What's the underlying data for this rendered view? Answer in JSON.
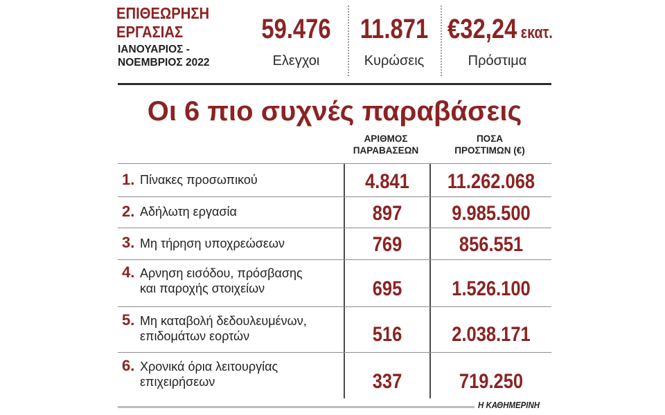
{
  "header": {
    "title_line1": "ΕΠΙΘΕΩΡΗΣΗ",
    "title_line2": "ΕΡΓΑΣΙΑΣ",
    "period_line1": "ΙΑΝΟΥΑΡΙΟΣ -",
    "period_line2": "ΝΟΕΜΒΡΙΟΣ 2022"
  },
  "stats": [
    {
      "value": "59.476",
      "unit": "",
      "label": "Ελεγχοι"
    },
    {
      "value": "11.871",
      "unit": "",
      "label": "Κυρώσεις"
    },
    {
      "value": "€32,24",
      "unit": " εκατ.",
      "label": "Πρόστιμα"
    }
  ],
  "heading": "Οι 6 πιο συχνές παραβάσεις",
  "columns": {
    "count_line1": "ΑΡΙΘΜΟΣ",
    "count_line2": "ΠΑΡΑΒΑΣΕΩΝ",
    "fines_line1": "ΠΟΣΑ",
    "fines_line2": "ΠΡΟΣΤΙΜΩΝ (€)"
  },
  "rows": [
    {
      "num": "1.",
      "line1": "Πίνακες προσωπικού",
      "line2": "",
      "count": "4.841",
      "fines": "11.262.068"
    },
    {
      "num": "2.",
      "line1": "Αδήλωτη εργασία",
      "line2": "",
      "count": "897",
      "fines": "9.985.500"
    },
    {
      "num": "3.",
      "line1": "Μη τήρηση υποχρεώσεων",
      "line2": "",
      "count": "769",
      "fines": "856.551"
    },
    {
      "num": "4.",
      "line1": "Αρνηση εισόδου, πρόσβασης",
      "line2": "και παροχής στοιχείων",
      "count": "695",
      "fines": "1.526.100"
    },
    {
      "num": "5.",
      "line1": "Μη καταβολή δεδουλευμένων,",
      "line2": "επιδομάτων εορτών",
      "count": "516",
      "fines": "2.038.171"
    },
    {
      "num": "6.",
      "line1": "Χρονικά όρια λειτουργίας",
      "line2": "επιχειρήσεων",
      "count": "337",
      "fines": "719.250"
    }
  ],
  "footer": "Η ΚΑΘΗΜΕΡΙΝΗ",
  "colors": {
    "accent": "#8b2323",
    "text": "#1a1a1a",
    "rule": "#2b2b2b"
  }
}
